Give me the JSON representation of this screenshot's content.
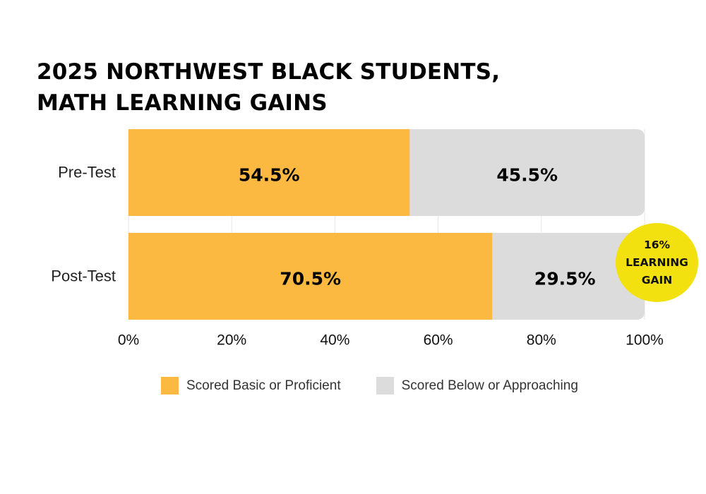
{
  "title": {
    "line1": "2025 NORTHWEST BLACK STUDENTS,",
    "line2": "MATH LEARNING GAINS"
  },
  "badge": {
    "line1": "16%",
    "line2": "LEARNING",
    "line3": "GAIN",
    "color": "#f2e10f"
  },
  "legend": [
    {
      "label": "Scored Basic or Proficient",
      "color": "#fbb941"
    },
    {
      "label": "Scored Below or Approaching",
      "color": "#dcdcdc"
    }
  ],
  "chart_data": {
    "type": "bar",
    "orientation": "horizontal",
    "stacked": true,
    "categories": [
      "Pre-Test",
      "Post-Test"
    ],
    "series": [
      {
        "name": "Scored Basic or Proficient",
        "values": [
          54.5,
          70.5
        ],
        "labels": [
          "54.5%",
          "70.5%"
        ],
        "color": "#fbb941"
      },
      {
        "name": "Scored Below or Approaching",
        "values": [
          45.5,
          29.5
        ],
        "labels": [
          "45.5%",
          "29.5%"
        ],
        "color": "#dcdcdc"
      }
    ],
    "xlim": [
      0,
      100
    ],
    "xticks": [
      0,
      20,
      40,
      60,
      80,
      100
    ],
    "xtick_labels": [
      "0%",
      "20%",
      "40%",
      "60%",
      "80%",
      "100%"
    ],
    "grid": true,
    "legend_position": "bottom"
  }
}
